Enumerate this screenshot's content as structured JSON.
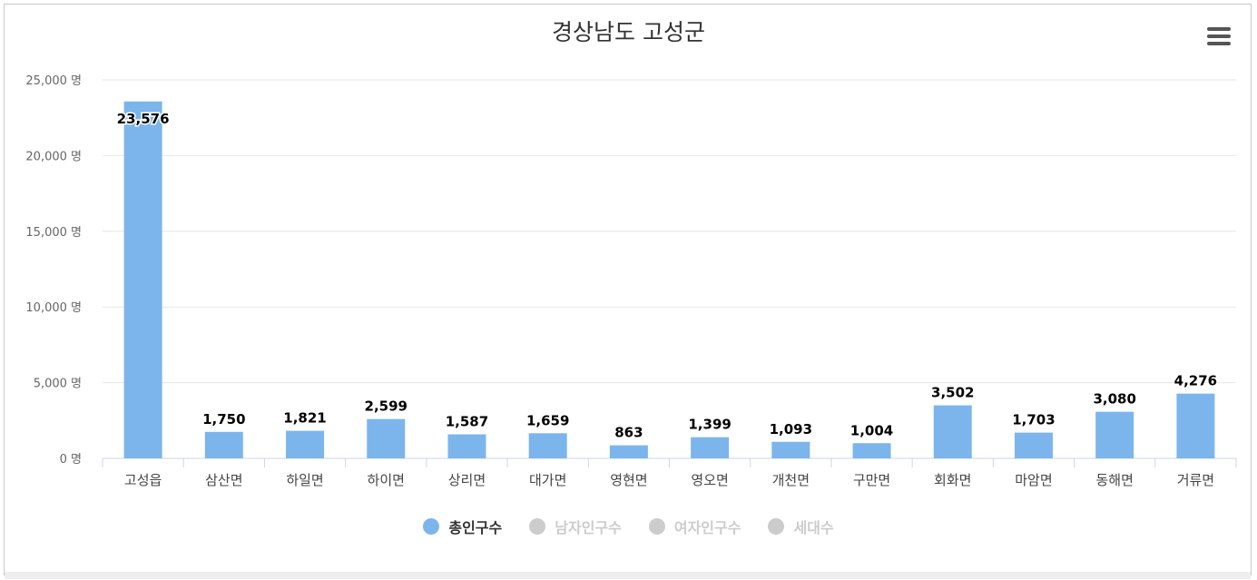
{
  "chart_data": {
    "type": "bar",
    "title": "경상남도 고성군",
    "categories": [
      "고성읍",
      "삼산면",
      "하일면",
      "하이면",
      "상리면",
      "대가면",
      "영현면",
      "영오면",
      "개천면",
      "구만면",
      "회화면",
      "마암면",
      "동해면",
      "거류면"
    ],
    "series": [
      {
        "name": "총인구수",
        "color": "#7cb5ec",
        "visible": true,
        "values": [
          23576,
          1750,
          1821,
          2599,
          1587,
          1659,
          863,
          1399,
          1093,
          1004,
          3502,
          1703,
          3080,
          4276
        ],
        "labels": [
          "23,576",
          "1,750",
          "1,821",
          "2,599",
          "1,587",
          "1,659",
          "863",
          "1,399",
          "1,093",
          "1,004",
          "3,502",
          "1,703",
          "3,080",
          "4,276"
        ]
      }
    ],
    "ylim": [
      0,
      25000
    ],
    "yticks": [
      0,
      5000,
      10000,
      15000,
      20000,
      25000
    ],
    "ytick_labels": [
      "0 명",
      "5,000 명",
      "10,000 명",
      "15,000 명",
      "20,000 명",
      "25,000 명"
    ],
    "grid": true,
    "legend_position": "bottom-center"
  },
  "legend": [
    {
      "label": "총인구수",
      "color": "#7cb5ec",
      "active": true
    },
    {
      "label": "남자인구수",
      "color": "#cccccc",
      "active": false
    },
    {
      "label": "여자인구수",
      "color": "#cccccc",
      "active": false
    },
    {
      "label": "세대수",
      "color": "#cccccc",
      "active": false
    }
  ],
  "menu": {
    "icon": "hamburger-menu-icon"
  }
}
